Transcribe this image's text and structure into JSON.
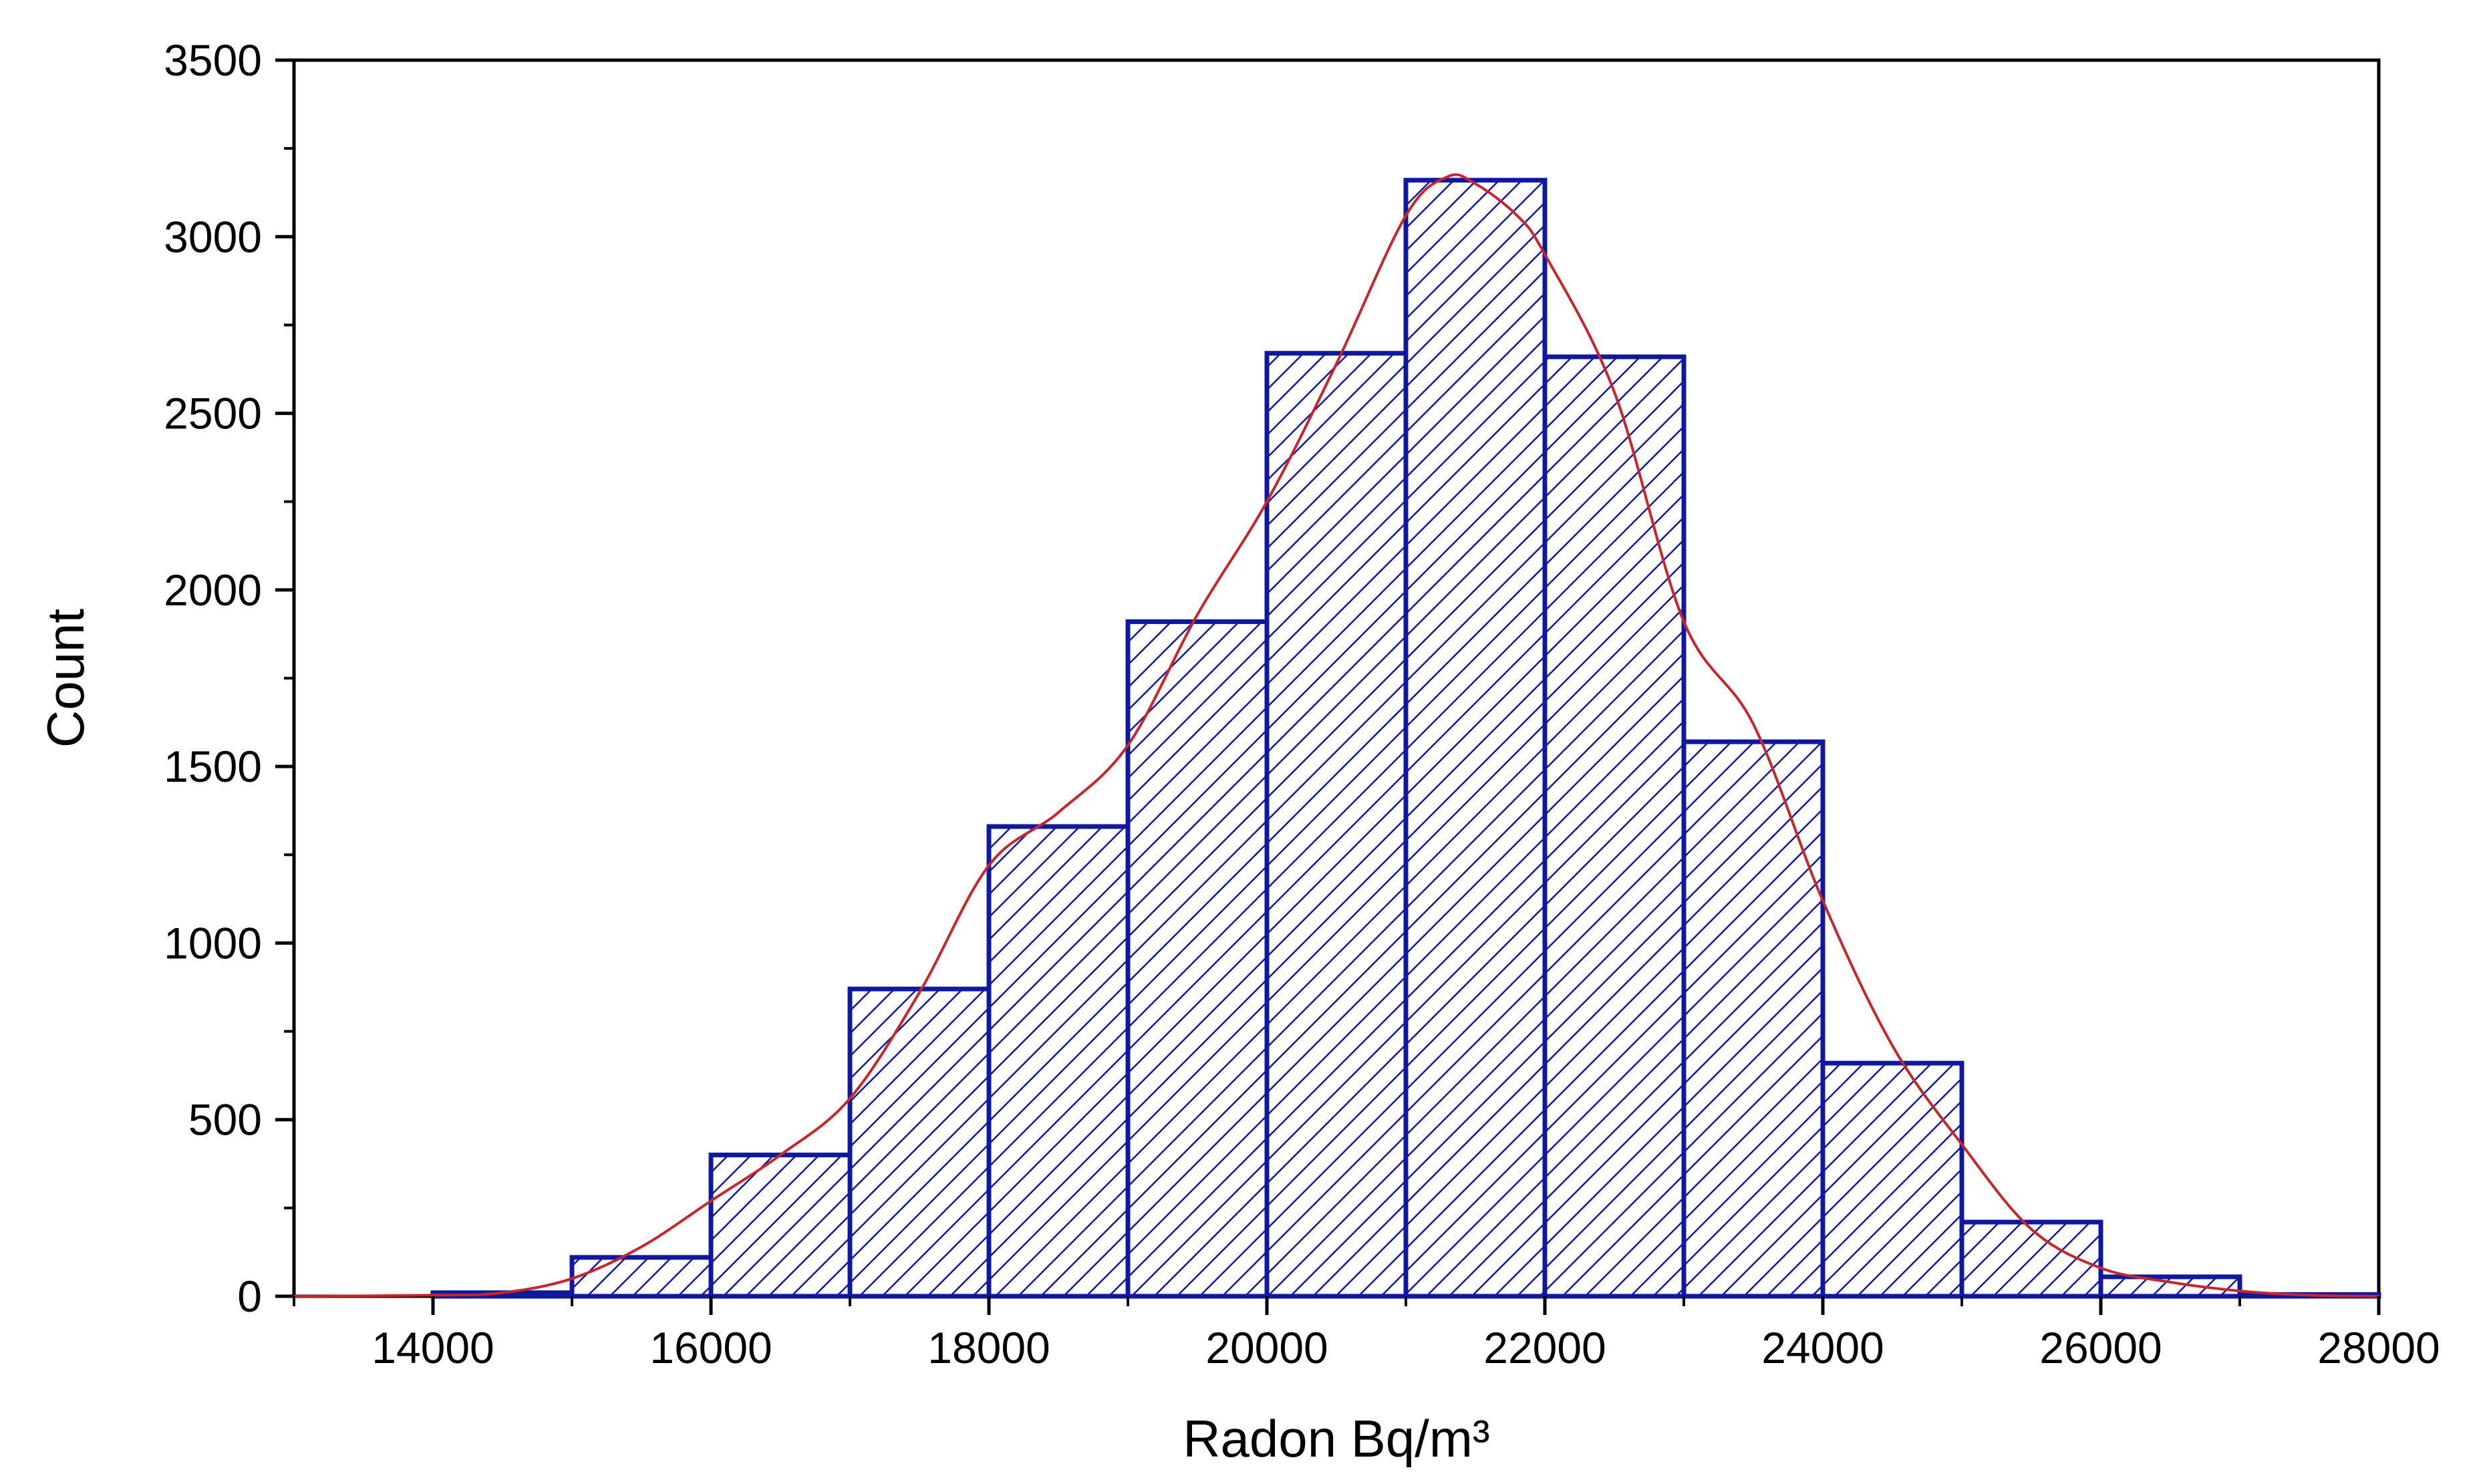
{
  "chart_data": {
    "type": "bar",
    "histogram": true,
    "xlabel": "Radon Bq/m³",
    "ylabel": "Count",
    "xlim": [
      13000,
      28000
    ],
    "ylim": [
      0,
      3500
    ],
    "x_ticks": [
      14000,
      16000,
      18000,
      20000,
      22000,
      24000,
      26000,
      28000
    ],
    "x_tick_labels": [
      "14000",
      "16000",
      "18000",
      "20000",
      "22000",
      "24000",
      "26000",
      "28000"
    ],
    "y_ticks": [
      0,
      500,
      1000,
      1500,
      2000,
      2500,
      3000,
      3500
    ],
    "y_tick_labels": [
      "0",
      "500",
      "1000",
      "1500",
      "2000",
      "2500",
      "3000",
      "3500"
    ],
    "bins": [
      {
        "start": 14000,
        "end": 15000,
        "count": 10
      },
      {
        "start": 15000,
        "end": 16000,
        "count": 110
      },
      {
        "start": 16000,
        "end": 17000,
        "count": 400
      },
      {
        "start": 17000,
        "end": 18000,
        "count": 870
      },
      {
        "start": 18000,
        "end": 19000,
        "count": 1330
      },
      {
        "start": 19000,
        "end": 20000,
        "count": 1910
      },
      {
        "start": 20000,
        "end": 21000,
        "count": 2670
      },
      {
        "start": 21000,
        "end": 22000,
        "count": 3160
      },
      {
        "start": 22000,
        "end": 23000,
        "count": 2660
      },
      {
        "start": 23000,
        "end": 24000,
        "count": 1570
      },
      {
        "start": 24000,
        "end": 25000,
        "count": 660
      },
      {
        "start": 25000,
        "end": 26000,
        "count": 210
      },
      {
        "start": 26000,
        "end": 27000,
        "count": 55
      },
      {
        "start": 27000,
        "end": 28000,
        "count": 5
      }
    ],
    "fit_curve": {
      "x": [
        13000,
        14000,
        14500,
        15000,
        15500,
        16000,
        16500,
        17000,
        17500,
        18000,
        18500,
        19000,
        19500,
        20000,
        20500,
        21000,
        21300,
        21500,
        21800,
        22000,
        22500,
        23000,
        23500,
        24000,
        24500,
        25000,
        25500,
        26000,
        26500,
        27000,
        27500,
        28000
      ],
      "y": [
        0,
        3,
        10,
        50,
        140,
        270,
        400,
        560,
        860,
        1220,
        1370,
        1560,
        1930,
        2250,
        2640,
        3060,
        3170,
        3150,
        3060,
        2950,
        2560,
        1910,
        1620,
        1120,
        710,
        430,
        190,
        80,
        40,
        15,
        3,
        0
      ]
    },
    "grid": false,
    "colors": {
      "bar_edge": "#1018a0",
      "hatch": "#1018a0",
      "fit": "#c8262a",
      "axis": "#000000"
    }
  }
}
